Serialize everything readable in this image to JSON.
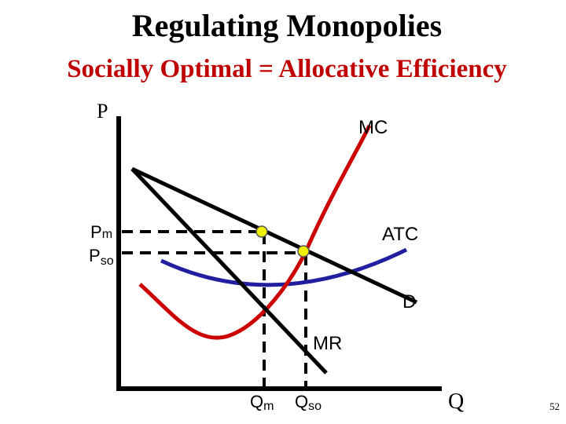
{
  "title": "Regulating Monopolies",
  "subtitle": "Socially Optimal = Allocative Efficiency",
  "axis_labels": {
    "y": "P",
    "x": "Q"
  },
  "curves": [
    {
      "label": "MC"
    },
    {
      "label": "ATC"
    },
    {
      "label": "D"
    },
    {
      "label": "MR"
    }
  ],
  "price_labels": [
    {
      "main": "P",
      "sub": "m"
    },
    {
      "main": "P",
      "sub": "so"
    }
  ],
  "quantity_labels": [
    {
      "main": "Q",
      "sub": "m"
    },
    {
      "main": "Q",
      "sub": "so"
    }
  ],
  "page_number": "52"
}
